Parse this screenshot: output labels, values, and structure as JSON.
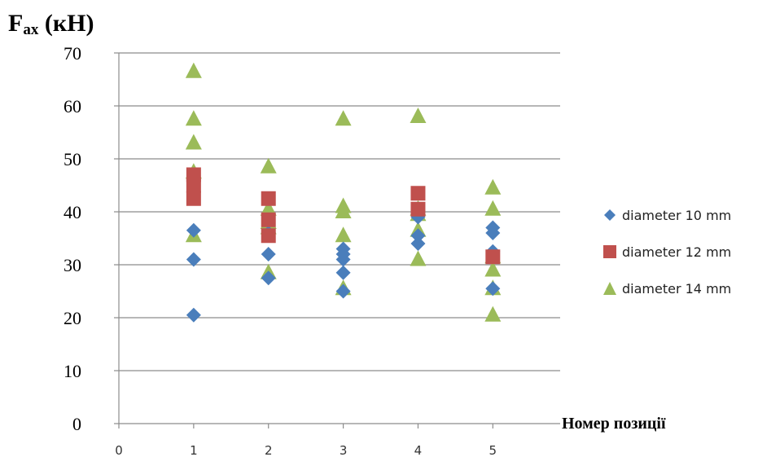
{
  "chart_data": {
    "type": "scatter",
    "ylabel": "F",
    "ylabel_sub": "ax",
    "ylabel_unit": " (кН)",
    "xlabel": "Номер позиції",
    "xlim": [
      0,
      5.9
    ],
    "ylim": [
      0,
      70
    ],
    "x_ticks": [
      "0",
      "1",
      "2",
      "3",
      "4",
      "5"
    ],
    "y_ticks": [
      "0",
      "10",
      "20",
      "30",
      "40",
      "50",
      "60",
      "70"
    ],
    "grid": "horizontal",
    "legend_position": "right",
    "series": [
      {
        "name": "diameter 10 mm",
        "marker": "diamond",
        "color": "#4a7ebb",
        "points": [
          [
            1,
            20.5
          ],
          [
            1,
            31
          ],
          [
            1,
            36.5
          ],
          [
            2,
            27.5
          ],
          [
            2,
            32
          ],
          [
            2,
            36
          ],
          [
            3,
            25
          ],
          [
            3,
            28.5
          ],
          [
            3,
            31
          ],
          [
            3,
            32
          ],
          [
            3,
            33
          ],
          [
            4,
            34
          ],
          [
            4,
            35.5
          ],
          [
            4,
            39
          ],
          [
            5,
            25.5
          ],
          [
            5,
            32.5
          ],
          [
            5,
            36
          ],
          [
            5,
            37
          ]
        ]
      },
      {
        "name": "diameter 12 mm",
        "marker": "square",
        "color": "#c0504d",
        "points": [
          [
            1,
            42.5
          ],
          [
            1,
            45
          ],
          [
            1,
            47
          ],
          [
            2,
            35.5
          ],
          [
            2,
            38.5
          ],
          [
            2,
            42.5
          ],
          [
            4,
            40.5
          ],
          [
            4,
            43.5
          ],
          [
            5,
            31.5
          ]
        ]
      },
      {
        "name": "diameter 14 mm",
        "marker": "triangle",
        "color": "#9bbb59",
        "points": [
          [
            1,
            35.5
          ],
          [
            1,
            47.5
          ],
          [
            1,
            53
          ],
          [
            1,
            57.5
          ],
          [
            1,
            66.5
          ],
          [
            2,
            28.5
          ],
          [
            2,
            37
          ],
          [
            2,
            38
          ],
          [
            2,
            40.5
          ],
          [
            2,
            48.5
          ],
          [
            3,
            25.5
          ],
          [
            3,
            35.5
          ],
          [
            3,
            40
          ],
          [
            3,
            41
          ],
          [
            3,
            57.5
          ],
          [
            4,
            31
          ],
          [
            4,
            36.5
          ],
          [
            4,
            39.5
          ],
          [
            4,
            40.5
          ],
          [
            4,
            58
          ],
          [
            5,
            20.5
          ],
          [
            5,
            25.5
          ],
          [
            5,
            29
          ],
          [
            5,
            31.5
          ],
          [
            5,
            40.5
          ],
          [
            5,
            44.5
          ]
        ]
      }
    ]
  }
}
